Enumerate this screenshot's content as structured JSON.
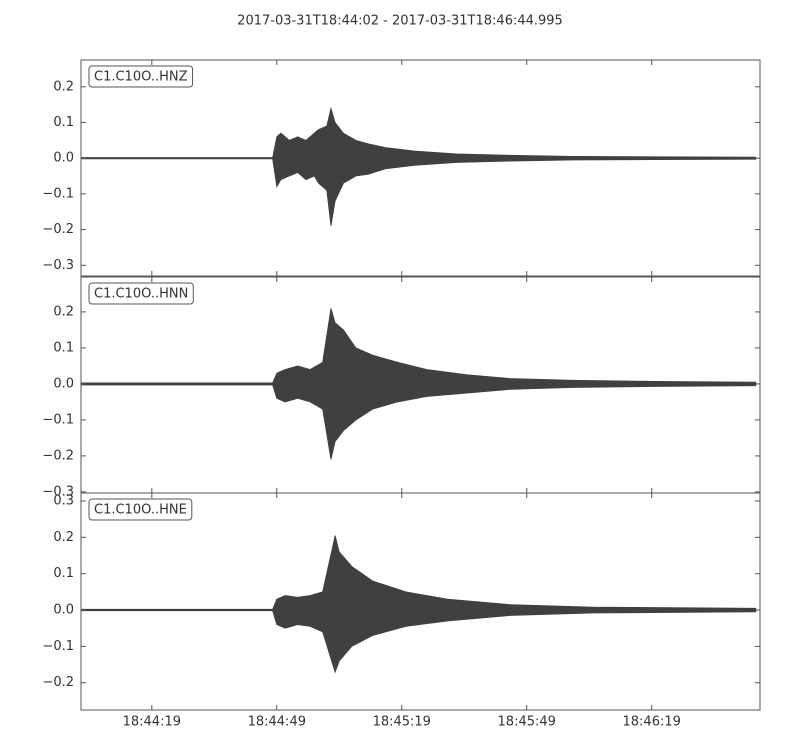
{
  "title": "2017-03-31T18:44:02  -  2017-03-31T18:46:44.995",
  "chart_data": [
    {
      "type": "area",
      "label": "C1.C10O..HNZ",
      "color": "#404040",
      "xlim": [
        "18:44:02",
        "18:46:44.995"
      ],
      "ylim": [
        -0.33,
        0.275
      ],
      "yticks": [
        {
          "value": -0.3,
          "label": "−0.3"
        },
        {
          "value": -0.2,
          "label": "−0.2"
        },
        {
          "value": -0.1,
          "label": "−0.1"
        },
        {
          "value": 0,
          "label": "0.0"
        },
        0.1,
        0.2
      ],
      "x": [
        "18:44:02",
        "18:44:48",
        "18:44:49",
        "18:44:50",
        "18:44:52",
        "18:44:54",
        "18:44:56",
        "18:44:58",
        "18:44:59",
        "18:45:01",
        "18:45:02",
        "18:45:03",
        "18:45:05",
        "18:45:08",
        "18:45:11",
        "18:45:15",
        "18:45:22",
        "18:45:32",
        "18:45:45",
        "18:46:00",
        "18:46:20",
        "18:46:44"
      ],
      "upper": [
        0.002,
        0.002,
        0.06,
        0.07,
        0.05,
        0.06,
        0.05,
        0.07,
        0.08,
        0.09,
        0.14,
        0.1,
        0.07,
        0.05,
        0.04,
        0.03,
        0.02,
        0.012,
        0.008,
        0.005,
        0.004,
        0.003
      ],
      "lower": [
        -0.002,
        -0.002,
        -0.08,
        -0.06,
        -0.05,
        -0.04,
        -0.06,
        -0.05,
        -0.07,
        -0.09,
        -0.19,
        -0.12,
        -0.07,
        -0.05,
        -0.045,
        -0.03,
        -0.02,
        -0.012,
        -0.008,
        -0.005,
        -0.004,
        -0.003
      ]
    },
    {
      "type": "area",
      "label": "C1.C10O..HNN",
      "color": "#404040",
      "xlim": [
        "18:44:02",
        "18:46:44.995"
      ],
      "ylim": [
        -0.303,
        0.297
      ],
      "yticks": [
        {
          "value": -0.3,
          "label": "−0.3"
        },
        {
          "value": -0.2,
          "label": "−0.2"
        },
        {
          "value": -0.1,
          "label": "−0.1"
        },
        {
          "value": 0,
          "label": "0.0"
        },
        0.1,
        0.2
      ],
      "x": [
        "18:44:02",
        "18:44:48",
        "18:44:49",
        "18:44:51",
        "18:44:54",
        "18:44:57",
        "18:45:00",
        "18:45:02",
        "18:45:03",
        "18:45:05",
        "18:45:08",
        "18:45:12",
        "18:45:18",
        "18:45:25",
        "18:45:35",
        "18:45:45",
        "18:46:00",
        "18:46:20",
        "18:46:44"
      ],
      "upper": [
        0.003,
        0.003,
        0.03,
        0.04,
        0.05,
        0.04,
        0.06,
        0.21,
        0.17,
        0.15,
        0.1,
        0.08,
        0.06,
        0.04,
        0.025,
        0.015,
        0.01,
        0.007,
        0.005
      ],
      "lower": [
        -0.003,
        -0.003,
        -0.04,
        -0.05,
        -0.04,
        -0.05,
        -0.07,
        -0.21,
        -0.16,
        -0.13,
        -0.1,
        -0.07,
        -0.05,
        -0.035,
        -0.025,
        -0.015,
        -0.01,
        -0.007,
        -0.005
      ]
    },
    {
      "type": "area",
      "label": "C1.C10O..HNE",
      "color": "#404040",
      "xlim": [
        "18:44:02",
        "18:46:44.995"
      ],
      "ylim": [
        -0.275,
        0.322
      ],
      "yticks": [
        {
          "value": -0.2,
          "label": "−0.2"
        },
        {
          "value": -0.1,
          "label": "−0.1"
        },
        {
          "value": 0,
          "label": "0.0"
        },
        0.1,
        0.2,
        0.3
      ],
      "xticks": [
        "18:44:19",
        "18:44:49",
        "18:45:19",
        "18:45:49",
        "18:46:19"
      ],
      "x": [
        "18:44:02",
        "18:44:48",
        "18:44:49",
        "18:44:51",
        "18:44:54",
        "18:44:57",
        "18:45:00",
        "18:45:03",
        "18:45:04",
        "18:45:07",
        "18:45:12",
        "18:45:20",
        "18:45:30",
        "18:45:45",
        "18:46:05",
        "18:46:44"
      ],
      "upper": [
        0.002,
        0.002,
        0.03,
        0.04,
        0.035,
        0.04,
        0.05,
        0.205,
        0.16,
        0.12,
        0.08,
        0.05,
        0.03,
        0.015,
        0.008,
        0.005
      ],
      "lower": [
        -0.002,
        -0.002,
        -0.04,
        -0.05,
        -0.04,
        -0.045,
        -0.06,
        -0.171,
        -0.14,
        -0.1,
        -0.07,
        -0.045,
        -0.03,
        -0.015,
        -0.008,
        -0.005
      ]
    }
  ]
}
